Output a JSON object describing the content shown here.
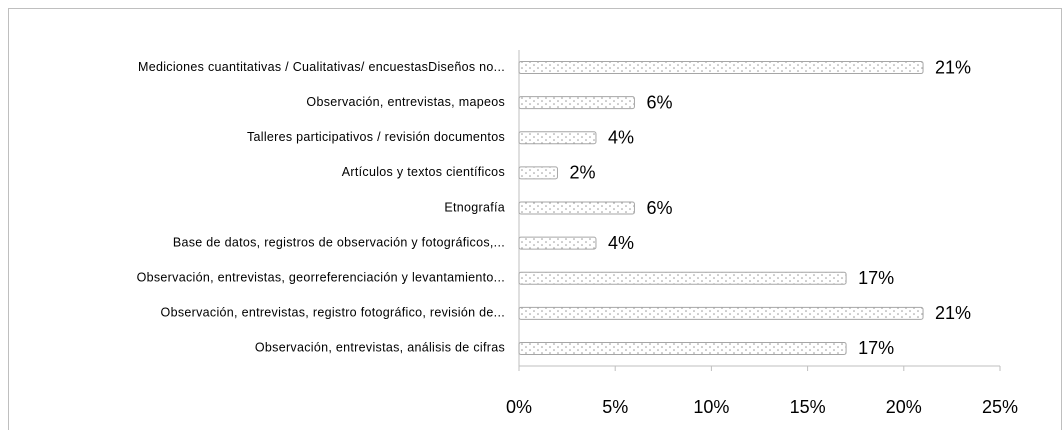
{
  "chart_data": {
    "type": "bar",
    "orientation": "horizontal",
    "categories": [
      "Mediciones cuantitativas / Cualitativas/ encuestasDiseños no...",
      "Observación, entrevistas, mapeos",
      "Talleres participativos / revisión documentos",
      "Artículos y textos científicos",
      "Etnografía",
      "Base de datos, registros de observación y fotográficos,...",
      "Observación, entrevistas, georreferenciación y levantamiento...",
      "Observación, entrevistas, registro fotográfico, revisión de...",
      "Observación, entrevistas, análisis de cifras"
    ],
    "values": [
      21,
      6,
      4,
      2,
      6,
      4,
      17,
      21,
      17
    ],
    "value_labels": [
      "21%",
      "6%",
      "4%",
      "2%",
      "6%",
      "4%",
      "17%",
      "21%",
      "17%"
    ],
    "xlim": [
      0,
      25
    ],
    "xticks": [
      {
        "value": 0,
        "label": "0%"
      },
      {
        "value": 5,
        "label": "5%"
      },
      {
        "value": 10,
        "label": "10%"
      },
      {
        "value": 15,
        "label": "15%"
      },
      {
        "value": 20,
        "label": "20%"
      },
      {
        "value": 25,
        "label": "25%"
      }
    ],
    "color": "#d9d9d9"
  }
}
